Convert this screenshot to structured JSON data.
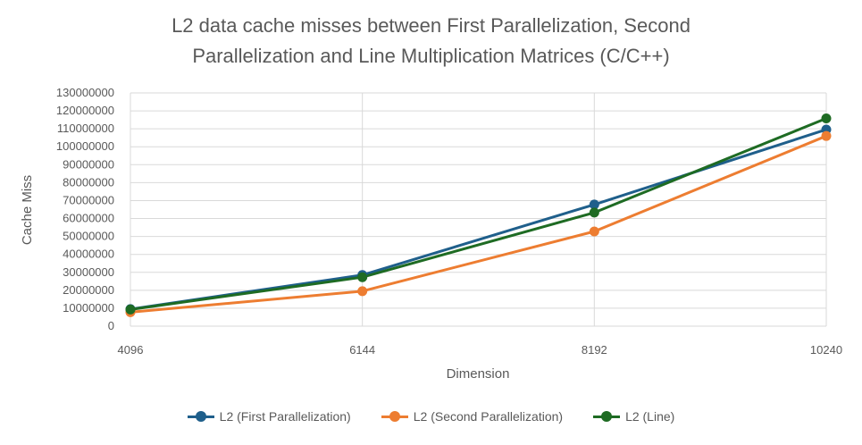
{
  "chart_data": {
    "type": "line",
    "title_line1": "L2 data cache misses between First Parallelization, Second",
    "title_line2": "Parallelization and Line Multiplication Matrices (C/C++)",
    "xlabel": "Dimension",
    "ylabel": "Cache Miss",
    "categories": [
      "4096",
      "6144",
      "8192",
      "10240"
    ],
    "ylim": [
      0,
      130000000
    ],
    "yticks": [
      "0",
      "10000000",
      "20000000",
      "30000000",
      "40000000",
      "50000000",
      "60000000",
      "70000000",
      "80000000",
      "90000000",
      "100000000",
      "110000000",
      "120000000",
      "130000000"
    ],
    "grid": true,
    "legend_position": "bottom",
    "series": [
      {
        "name": "L2 (First Parallelization)",
        "color": "#1f5f8b",
        "values": [
          9500000,
          28500000,
          67800000,
          109600000
        ]
      },
      {
        "name": "L2 (Second Parallelization)",
        "color": "#ed7d31",
        "values": [
          7800000,
          19500000,
          52800000,
          106000000
        ]
      },
      {
        "name": "L2 (Line)",
        "color": "#1e6b23",
        "values": [
          9300000,
          27300000,
          63300000,
          115800000
        ]
      }
    ]
  }
}
